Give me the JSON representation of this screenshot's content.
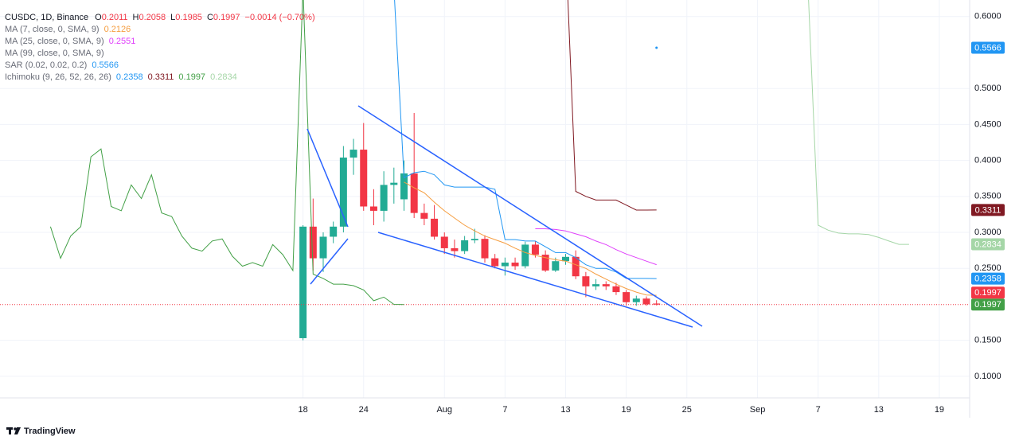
{
  "chart_data": {
    "type": "candlestick",
    "header": {
      "symbol": "CUSDC, 1D, Binance",
      "ohlc_labels": [
        "O",
        "H",
        "L",
        "C"
      ],
      "change": "−0.0014 (−0.70%)"
    },
    "xlim": [
      "06-18",
      "09-22"
    ],
    "xticks": [
      {
        "value": "07-18",
        "label": "18"
      },
      {
        "value": "07-24",
        "label": "24"
      },
      {
        "value": "08-01",
        "label": "Aug"
      },
      {
        "value": "08-07",
        "label": "7"
      },
      {
        "value": "08-13",
        "label": "13"
      },
      {
        "value": "08-19",
        "label": "19"
      },
      {
        "value": "08-25",
        "label": "25"
      },
      {
        "value": "09-01",
        "label": "Sep"
      },
      {
        "value": "09-07",
        "label": "7"
      },
      {
        "value": "09-13",
        "label": "13"
      },
      {
        "value": "09-19",
        "label": "19"
      }
    ],
    "ylim": [
      0.07,
      0.623
    ],
    "yticks": [
      {
        "value": 0.1,
        "label": "0.1000"
      },
      {
        "value": 0.15,
        "label": "0.1500"
      },
      {
        "value": 0.25,
        "label": "0.2500"
      },
      {
        "value": 0.3,
        "label": "0.3000"
      },
      {
        "value": 0.35,
        "label": "0.3500"
      },
      {
        "value": 0.4,
        "label": "0.4000"
      },
      {
        "value": 0.45,
        "label": "0.4500"
      },
      {
        "value": 0.5,
        "label": "0.5000"
      },
      {
        "value": 0.6,
        "label": "0.6000"
      }
    ],
    "grid": true,
    "candles": {
      "start": "07-18",
      "up_color": "#22ab94",
      "down_color": "#f23645",
      "open": [
        0.153,
        0.308,
        0.264,
        0.294,
        0.308,
        0.404,
        0.415,
        0.336,
        0.33,
        0.366,
        0.346,
        0.382,
        0.327,
        0.319,
        0.294,
        0.278,
        0.274,
        0.289,
        0.291,
        0.264,
        0.253,
        0.258,
        0.253,
        0.283,
        0.269,
        0.247,
        0.26,
        0.266,
        0.239,
        0.225,
        0.228,
        0.225,
        0.217,
        0.203,
        0.208,
        0.2011
      ],
      "high": [
        0.31,
        0.347,
        0.3,
        0.315,
        0.42,
        0.43,
        0.452,
        0.36,
        0.385,
        0.39,
        0.4,
        0.466,
        0.34,
        0.338,
        0.3,
        0.29,
        0.295,
        0.305,
        0.296,
        0.27,
        0.265,
        0.265,
        0.287,
        0.288,
        0.275,
        0.265,
        0.27,
        0.275,
        0.245,
        0.235,
        0.232,
        0.23,
        0.22,
        0.212,
        0.211,
        0.2058
      ],
      "low": [
        0.15,
        0.247,
        0.245,
        0.285,
        0.3,
        0.38,
        0.33,
        0.31,
        0.315,
        0.34,
        0.33,
        0.32,
        0.31,
        0.29,
        0.27,
        0.265,
        0.27,
        0.285,
        0.258,
        0.25,
        0.24,
        0.248,
        0.25,
        0.265,
        0.245,
        0.245,
        0.255,
        0.235,
        0.21,
        0.22,
        0.22,
        0.213,
        0.198,
        0.198,
        0.198,
        0.1985
      ],
      "close": [
        0.308,
        0.264,
        0.294,
        0.308,
        0.404,
        0.415,
        0.336,
        0.33,
        0.366,
        0.369,
        0.382,
        0.327,
        0.319,
        0.294,
        0.278,
        0.274,
        0.289,
        0.291,
        0.264,
        0.253,
        0.258,
        0.253,
        0.283,
        0.269,
        0.247,
        0.26,
        0.266,
        0.239,
        0.225,
        0.228,
        0.225,
        0.217,
        0.203,
        0.208,
        0.2,
        0.1997
      ]
    },
    "indicators": [
      {
        "name": "MA (7, close, 0, SMA, 9)",
        "lines": [
          {
            "color": "#f59d3f",
            "start": "07-28",
            "values": [
              0.37,
              0.362,
              0.355,
              0.342,
              0.33,
              0.32,
              0.31,
              0.302,
              0.295,
              0.29,
              0.285,
              0.278,
              0.272,
              0.268,
              0.265,
              0.262,
              0.26,
              0.255,
              0.25,
              0.242,
              0.235,
              0.228,
              0.222,
              0.217,
              0.213,
              0.2126
            ]
          }
        ]
      },
      {
        "name": "MA (25, close, 0, SMA, 9)",
        "lines": [
          {
            "color": "#e040fb",
            "start": "08-10",
            "values": [
              0.305,
              0.305,
              0.304,
              0.302,
              0.298,
              0.294,
              0.288,
              0.283,
              0.276,
              0.27,
              0.265,
              0.26,
              0.2551
            ]
          }
        ]
      },
      {
        "name": "MA (99, close, 0, SMA, 9)",
        "lines": []
      },
      {
        "name": "SAR (0.02, 0.02, 0.2)",
        "lines": [
          {
            "color": "#2196f3",
            "style": "dots",
            "price_label": true,
            "start": "08-22",
            "values": [
              0.5566
            ]
          }
        ]
      },
      {
        "name": "Ichimoku (9, 26, 52, 26, 26)",
        "lines": [
          {
            "color": "#2196f3",
            "price_label": true,
            "start": "07-27",
            "values": [
              0.64,
              0.376,
              0.383,
              0.385,
              0.38,
              0.366,
              0.363,
              0.363,
              0.363,
              0.363,
              0.36,
              0.29,
              0.29,
              0.288,
              0.288,
              0.28,
              0.272,
              0.272,
              0.265,
              0.255,
              0.25,
              0.25,
              0.245,
              0.236,
              0.236,
              0.236,
              0.2358
            ]
          },
          {
            "color": "#801922",
            "price_label": true,
            "start": "08-13",
            "values": [
              0.7,
              0.357,
              0.35,
              0.345,
              0.345,
              0.345,
              0.338,
              0.331,
              0.331,
              0.3311
            ]
          },
          {
            "color": "#43a047",
            "price_label": true,
            "start": "06-23",
            "values": [
              0.308,
              0.264,
              0.295,
              0.308,
              0.405,
              0.416,
              0.336,
              0.33,
              0.366,
              0.347,
              0.38,
              0.327,
              0.322,
              0.295,
              0.278,
              0.274,
              0.288,
              0.291,
              0.267,
              0.253,
              0.258,
              0.253,
              0.283,
              0.269,
              0.247,
              0.64,
              0.242,
              0.236,
              0.228,
              0.228,
              0.226,
              0.22,
              0.205,
              0.21,
              0.2,
              0.1997
            ]
          },
          {
            "color": "#a5d6a7",
            "price_label": true,
            "start": "09-06",
            "values": [
              0.64,
              0.31,
              0.303,
              0.299,
              0.298,
              0.298,
              0.297,
              0.293,
              0.288,
              0.2834,
              0.2834
            ]
          }
        ]
      }
    ],
    "footer": "TradingView"
  }
}
